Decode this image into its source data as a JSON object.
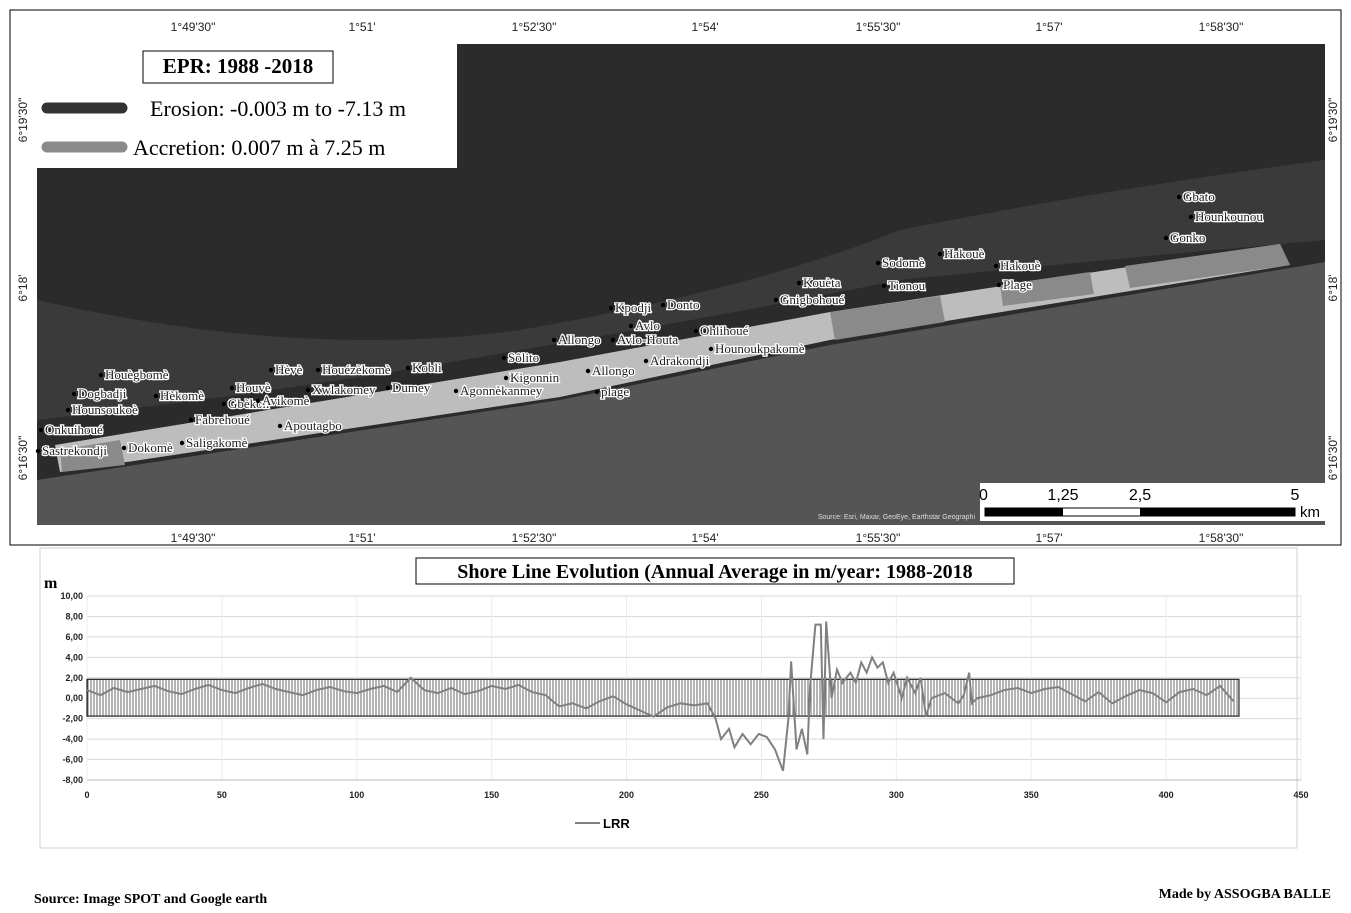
{
  "map": {
    "legend": {
      "title": "EPR: 1988 -2018",
      "items": [
        {
          "label": "Erosion: -0.003 m to -7.13 m",
          "color": "#333333"
        },
        {
          "label": "Accretion: 0.007 m à 7.25 m",
          "color": "#8a8a8a"
        }
      ]
    },
    "lon_labels": [
      "1°49'30\"",
      "1°51'",
      "1°52'30\"",
      "1°54'",
      "1°55'30\"",
      "1°57'",
      "1°58'30\""
    ],
    "lat_labels": [
      "6°19'30\"",
      "6°18'",
      "6°16'30\""
    ],
    "places": [
      "Houègbomè",
      "Dogbadji",
      "Hèkomè",
      "Hounsoukoè",
      "Onkuihoué",
      "Sastrekondji",
      "Dokomè",
      "Saligakomè",
      "Fabrehoué",
      "Gbèkon",
      "Avikomè",
      "Apoutagbo",
      "Houvè",
      "Hèvè",
      "Houézèkomè",
      "Xwlakomey",
      "Dumey",
      "Kobli",
      "Agonnèkanmey",
      "Kigonnin",
      "Sôlito",
      "Allongo",
      "Allongo",
      "plage",
      "Avlo-Houta",
      "Avlo",
      "Kpodji",
      "Donto",
      "Ohlihoué",
      "Adrakondji",
      "Hounoukpakomè",
      "Kouèta",
      "Gnigbohoué",
      "Sodomè",
      "Tionou",
      "Hakouè",
      "Hakouè",
      "Plage",
      "Gbato",
      "Hounkounou",
      "Gonko"
    ],
    "scale": {
      "labels": [
        "0",
        "1,25",
        "2,5",
        "5"
      ],
      "unit": "km"
    },
    "attribution": "Source: Esri, Maxar, GeoEye, Earthstar Geographi"
  },
  "chart_data": {
    "type": "line",
    "title": "Shore Line Evolution (Annual Average in m/year: 1988-2018",
    "ylabel": "m",
    "xlim": [
      0,
      450
    ],
    "xticks": [
      0,
      50,
      100,
      150,
      200,
      250,
      300,
      350,
      400,
      450
    ],
    "ylim": [
      -8,
      10
    ],
    "yticks": [
      {
        "value": -8,
        "label": "-8,00"
      },
      {
        "value": -6,
        "label": "-6,00"
      },
      {
        "value": -4,
        "label": "-4,00"
      },
      {
        "value": -2,
        "label": "-2,00"
      },
      {
        "value": 0,
        "label": "0,00"
      },
      {
        "value": 2,
        "label": "2,00"
      },
      {
        "value": 4,
        "label": "4,00"
      },
      {
        "value": 6,
        "label": "6,00"
      },
      {
        "value": 8,
        "label": "8,00"
      },
      {
        "value": 10,
        "label": "10,00"
      }
    ],
    "grid": true,
    "band": {
      "x": [
        0,
        427
      ],
      "y": [
        -1.75,
        1.85
      ]
    },
    "series": [
      {
        "name": "LRR",
        "color": "#808080",
        "x": [
          0,
          5,
          10,
          15,
          20,
          25,
          30,
          35,
          40,
          45,
          50,
          55,
          60,
          65,
          70,
          75,
          80,
          85,
          90,
          95,
          100,
          105,
          110,
          115,
          120,
          125,
          130,
          135,
          140,
          145,
          150,
          155,
          160,
          165,
          170,
          175,
          180,
          185,
          190,
          195,
          200,
          205,
          210,
          215,
          220,
          225,
          230,
          233,
          235,
          238,
          240,
          243,
          246,
          249,
          252,
          255,
          258,
          260,
          261,
          263,
          265,
          267,
          268,
          270,
          272,
          273,
          274,
          276,
          278,
          280,
          283,
          285,
          287,
          289,
          291,
          293,
          295,
          297,
          299,
          302,
          304,
          307,
          309,
          311,
          313,
          318,
          323,
          325,
          327,
          328,
          330,
          335,
          340,
          345,
          350,
          355,
          360,
          365,
          370,
          375,
          380,
          385,
          390,
          395,
          400,
          405,
          410,
          415,
          420,
          425
        ],
        "values": [
          0.8,
          0.3,
          1.0,
          0.6,
          0.9,
          1.2,
          0.7,
          0.4,
          0.9,
          1.3,
          0.8,
          0.5,
          1.0,
          1.4,
          0.9,
          0.6,
          0.3,
          0.8,
          1.1,
          0.7,
          0.5,
          0.9,
          1.2,
          0.6,
          2.0,
          0.8,
          0.5,
          1.0,
          0.4,
          0.7,
          1.2,
          0.9,
          1.3,
          0.6,
          0.3,
          -0.8,
          -0.5,
          -1.0,
          -0.3,
          0.2,
          -0.6,
          -1.2,
          -1.8,
          -0.9,
          -0.5,
          -0.7,
          -0.5,
          -2,
          -4,
          -3,
          -4.8,
          -3.5,
          -4.5,
          -3.5,
          -3.8,
          -5,
          -7.1,
          -2,
          3.6,
          -5,
          -3,
          -5.5,
          1,
          7.2,
          7.2,
          -4,
          7.5,
          0,
          2.8,
          1.5,
          2.5,
          1.5,
          3.5,
          2.5,
          4,
          3,
          3.5,
          1.5,
          2.5,
          0,
          2,
          0.5,
          2,
          -1.8,
          0,
          0.5,
          -0.5,
          0.3,
          2.5,
          -0.5,
          0,
          0.3,
          0.8,
          1.0,
          0.5,
          0.9,
          1.1,
          0.4,
          -0.3,
          0.6,
          -0.5,
          0.2,
          0.8,
          0.5,
          -0.4,
          0.6,
          0.9,
          0.3,
          1.2,
          -0.3
        ]
      }
    ]
  },
  "footer": {
    "source": "Source: Image SPOT and Google earth",
    "credit": "Made by ASSOGBA BALLE"
  }
}
